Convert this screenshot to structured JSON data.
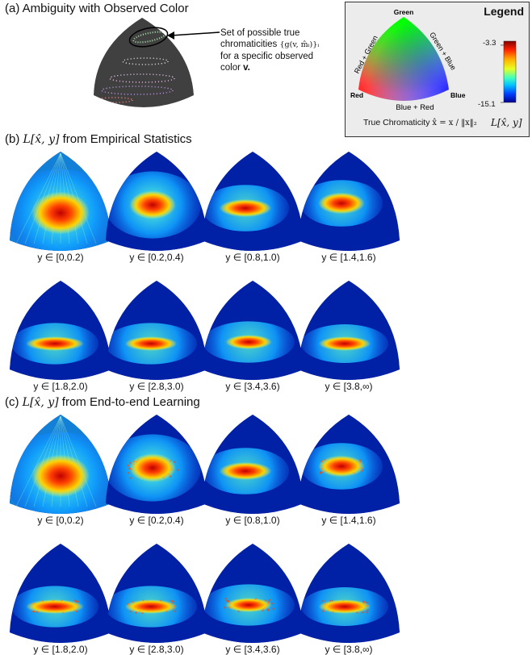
{
  "panel_a": {
    "title": "(a) Ambiguity with Observed Color",
    "annotation_line1": "Set of possible true",
    "annotation_line2": "chromaticities",
    "annotation_math": "{g(v, m̂ᵢ)}ᵢ",
    "annotation_line3": "for a specific observed",
    "annotation_line4": "color",
    "annotation_bold": "v."
  },
  "legend": {
    "title": "Legend",
    "vertex_top": "Green",
    "vertex_left": "Red",
    "vertex_right": "Blue",
    "edge_left": "Red + Green",
    "edge_right": "Green + Blue",
    "edge_bottom": "Blue + Red",
    "true_chroma_label": "True Chromaticity",
    "true_chroma_math": "x̂ = x / ‖x‖₂",
    "colorbar_max": "-3.3",
    "colorbar_min": "-15.1",
    "colorbar_label": "L[x̂, y]",
    "colorbar_colors": [
      "#800000",
      "#ff2000",
      "#ffb000",
      "#e8ff20",
      "#40ffc0",
      "#00c0ff",
      "#0040ff",
      "#000090"
    ]
  },
  "panel_b": {
    "title_prefix": "(b)",
    "title_math": "L[x̂, y]",
    "title_suffix": "from Empirical Statistics",
    "captions": [
      "y ∈ [0,0.2)",
      "y ∈ [0.2,0.4)",
      "y ∈ [0.8,1.0)",
      "y ∈ [1.4,1.6)",
      "y ∈ [1.8,2.0)",
      "y ∈ [2.8,3.0)",
      "y ∈ [3.4,3.6)",
      "y ∈ [3.8,∞)"
    ]
  },
  "panel_c": {
    "title_prefix": "(c)",
    "title_math": "L[x̂, y]",
    "title_suffix": "from End-to-end Learning",
    "captions": [
      "y ∈ [0,0.2)",
      "y ∈ [0.2,0.4)",
      "y ∈ [0.8,1.0)",
      "y ∈ [1.4,1.6)",
      "y ∈ [1.8,2.0)",
      "y ∈ [2.8,3.0)",
      "y ∈ [3.4,3.6)",
      "y ∈ [3.8,∞)"
    ]
  }
}
